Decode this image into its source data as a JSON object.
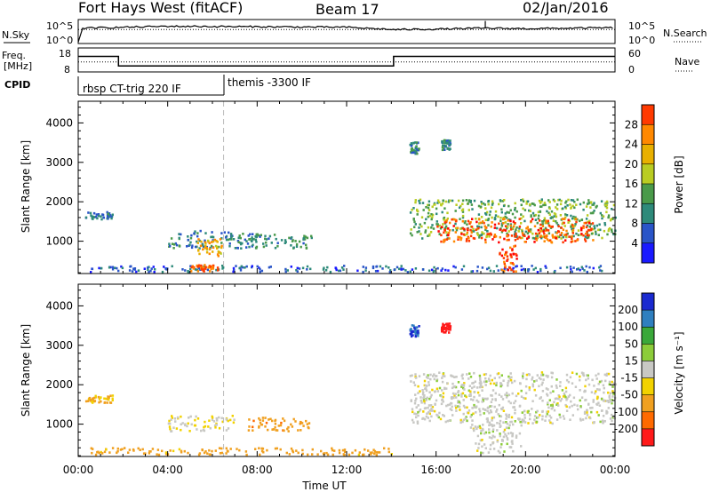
{
  "header": {
    "station": "Fort Hays West (fitACF)",
    "beam": "Beam 17",
    "date": "02/Jan/2016"
  },
  "strip": {
    "nsky_label": "N.Sky",
    "nsearch_label": "N.Search",
    "noise_ticks": [
      "10^5",
      "10^0"
    ],
    "freq_label_1": "Freq.",
    "freq_label_2": "[MHz]",
    "freq_ticks": [
      "18",
      "8"
    ],
    "nave_label": "Nave",
    "nave_ticks": [
      "60",
      "0"
    ],
    "cpid_label": "CPID",
    "programs": [
      "rbsp CT-trig 220 IF",
      "themis -3300 IF"
    ]
  },
  "axes": {
    "ylabel": "Slant Range [km]",
    "xlabel": "Time UT",
    "xticks": [
      "00:00",
      "04:00",
      "08:00",
      "12:00",
      "16:00",
      "20:00",
      "00:00"
    ],
    "yticks": [
      "1000",
      "2000",
      "3000",
      "4000"
    ]
  },
  "colorbars": {
    "power": {
      "label": "Power [dB]",
      "ticks": [
        "4",
        "8",
        "12",
        "16",
        "20",
        "24",
        "28"
      ]
    },
    "velocity": {
      "label": "Velocity [m s⁻¹]",
      "ticks": [
        "200",
        "100",
        "50",
        "15",
        "-15",
        "-50",
        "-100",
        "-200"
      ]
    }
  },
  "chart_data": [
    {
      "type": "line",
      "title": "N.Sky / N.Search",
      "xlim": [
        0,
        24
      ],
      "x_hours": [
        0,
        0.2,
        4,
        8,
        12,
        14.1,
        16,
        18.2,
        20,
        24
      ],
      "series": [
        {
          "name": "N.Sky",
          "values_log10": [
            0.3,
            3.2,
            3.6,
            3.5,
            3.4,
            2.9,
            3.0,
            3.2,
            3.1,
            3.3
          ]
        },
        {
          "name": "N.Search",
          "values_log10": [
            2.9,
            2.9,
            2.9,
            2.9,
            2.9,
            2.9,
            2.9,
            2.9,
            2.9,
            2.9
          ]
        }
      ]
    },
    {
      "type": "line",
      "title": "Freq. [MHz] / Nave",
      "xlim": [
        0,
        24
      ],
      "freq_steps": [
        {
          "start": 0,
          "end": 1.8,
          "mhz": 14.5
        },
        {
          "start": 1.8,
          "end": 14.1,
          "mhz": 10.5
        },
        {
          "start": 14.1,
          "end": 24,
          "mhz": 14.5
        }
      ],
      "nave_level": 25
    },
    {
      "type": "heatmap",
      "variable": "power",
      "units": "dB",
      "xlim_hours": [
        0,
        24
      ],
      "ylim_km": [
        180,
        4550
      ],
      "scale": [
        0,
        30
      ],
      "vertical_marker_hour": 6.5,
      "echo_regions": [
        {
          "t0": 0.3,
          "t1": 1.5,
          "r0": 1520,
          "r1": 1720,
          "power": 10
        },
        {
          "t0": 4.0,
          "t1": 8.0,
          "r0": 800,
          "r1": 1250,
          "power": 11
        },
        {
          "t0": 5.3,
          "t1": 6.4,
          "r0": 600,
          "r1": 1050,
          "power": 22
        },
        {
          "t0": 7.2,
          "t1": 10.4,
          "r0": 800,
          "r1": 1150,
          "power": 12
        },
        {
          "t0": 0.5,
          "t1": 24,
          "r0": 200,
          "r1": 360,
          "power": 9
        },
        {
          "t0": 5.0,
          "t1": 6.2,
          "r0": 220,
          "r1": 380,
          "power": 26
        },
        {
          "t0": 14.8,
          "t1": 15.2,
          "r0": 3200,
          "r1": 3500,
          "power": 12
        },
        {
          "t0": 16.2,
          "t1": 16.6,
          "r0": 3300,
          "r1": 3550,
          "power": 12
        },
        {
          "t0": 14.8,
          "t1": 24,
          "r0": 1050,
          "r1": 2050,
          "power": 15
        },
        {
          "t0": 16.0,
          "t1": 23.0,
          "r0": 950,
          "r1": 1550,
          "power": 27
        },
        {
          "t0": 18.8,
          "t1": 19.6,
          "r0": 200,
          "r1": 900,
          "power": 28
        }
      ]
    },
    {
      "type": "heatmap",
      "variable": "velocity",
      "units": "m s-1",
      "xlim_hours": [
        0,
        24
      ],
      "ylim_km": [
        180,
        4550
      ],
      "scale": [
        -250,
        250
      ],
      "vertical_marker_hour": 6.5,
      "echo_regions": [
        {
          "t0": 0.3,
          "t1": 1.5,
          "r0": 1520,
          "r1": 1720,
          "velocity": -40
        },
        {
          "t0": 4.0,
          "t1": 7.0,
          "r0": 800,
          "r1": 1200,
          "velocity": -10
        },
        {
          "t0": 7.5,
          "t1": 10.4,
          "r0": 800,
          "r1": 1150,
          "velocity": -60
        },
        {
          "t0": 0.5,
          "t1": 14.0,
          "r0": 200,
          "r1": 380,
          "velocity": -50
        },
        {
          "t0": 14.8,
          "t1": 15.2,
          "r0": 3200,
          "r1": 3500,
          "velocity": 150
        },
        {
          "t0": 16.2,
          "t1": 16.6,
          "r0": 3300,
          "r1": 3550,
          "velocity": -200
        },
        {
          "t0": 14.8,
          "t1": 24,
          "r0": 1000,
          "r1": 2300,
          "velocity": 0
        },
        {
          "t0": 17.5,
          "t1": 19.8,
          "r0": 250,
          "r1": 1000,
          "velocity": 0
        }
      ]
    }
  ]
}
